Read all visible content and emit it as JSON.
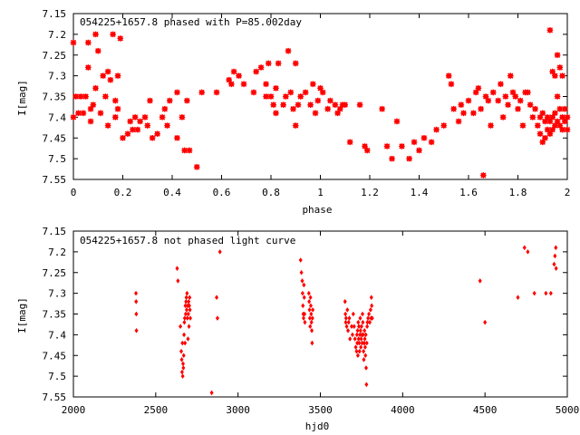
{
  "chart_data": [
    {
      "type": "scatter",
      "title": "054225+1657.8 phased with P=85.002day",
      "xlabel": "phase",
      "ylabel": "I[mag]",
      "xlim": [
        0,
        2
      ],
      "ylim": [
        7.55,
        7.15
      ],
      "y_inverted": true,
      "grid": false,
      "x_ticks": [
        "0",
        "0.2",
        "0.4",
        "0.6",
        "0.8",
        "1",
        "1.2",
        "1.4",
        "1.6",
        "1.8",
        "2"
      ],
      "x_tick_values": [
        0,
        0.2,
        0.4,
        0.6,
        0.8,
        1.0,
        1.2,
        1.4,
        1.6,
        1.8,
        2.0
      ],
      "y_ticks": [
        "7.15",
        "7.2",
        "7.25",
        "7.3",
        "7.35",
        "7.4",
        "7.45",
        "7.5",
        "7.55"
      ],
      "y_tick_values": [
        7.15,
        7.2,
        7.25,
        7.3,
        7.35,
        7.4,
        7.45,
        7.5,
        7.55
      ],
      "marker_color": "#ff0000",
      "marker": "filled-square-star",
      "points": [
        [
          0.0,
          7.22
        ],
        [
          0.0,
          7.4
        ],
        [
          0.01,
          7.35
        ],
        [
          0.02,
          7.39
        ],
        [
          0.03,
          7.35
        ],
        [
          0.04,
          7.39
        ],
        [
          0.05,
          7.35
        ],
        [
          0.06,
          7.22
        ],
        [
          0.06,
          7.28
        ],
        [
          0.07,
          7.38
        ],
        [
          0.07,
          7.41
        ],
        [
          0.08,
          7.37
        ],
        [
          0.09,
          7.2
        ],
        [
          0.09,
          7.33
        ],
        [
          0.1,
          7.24
        ],
        [
          0.11,
          7.39
        ],
        [
          0.12,
          7.3
        ],
        [
          0.13,
          7.35
        ],
        [
          0.14,
          7.29
        ],
        [
          0.14,
          7.42
        ],
        [
          0.15,
          7.31
        ],
        [
          0.16,
          7.2
        ],
        [
          0.17,
          7.36
        ],
        [
          0.17,
          7.4
        ],
        [
          0.18,
          7.3
        ],
        [
          0.18,
          7.38
        ],
        [
          0.19,
          7.21
        ],
        [
          0.2,
          7.45
        ],
        [
          0.22,
          7.44
        ],
        [
          0.23,
          7.41
        ],
        [
          0.24,
          7.43
        ],
        [
          0.25,
          7.4
        ],
        [
          0.26,
          7.43
        ],
        [
          0.27,
          7.41
        ],
        [
          0.29,
          7.4
        ],
        [
          0.3,
          7.42
        ],
        [
          0.31,
          7.36
        ],
        [
          0.32,
          7.45
        ],
        [
          0.34,
          7.44
        ],
        [
          0.36,
          7.4
        ],
        [
          0.37,
          7.38
        ],
        [
          0.38,
          7.42
        ],
        [
          0.39,
          7.36
        ],
        [
          0.42,
          7.34
        ],
        [
          0.42,
          7.45
        ],
        [
          0.44,
          7.4
        ],
        [
          0.45,
          7.48
        ],
        [
          0.46,
          7.36
        ],
        [
          0.47,
          7.48
        ],
        [
          0.5,
          7.52
        ],
        [
          0.52,
          7.34
        ],
        [
          0.58,
          7.34
        ],
        [
          0.63,
          7.31
        ],
        [
          0.64,
          7.32
        ],
        [
          0.65,
          7.29
        ],
        [
          0.67,
          7.3
        ],
        [
          0.69,
          7.32
        ],
        [
          0.73,
          7.34
        ],
        [
          0.74,
          7.29
        ],
        [
          0.76,
          7.28
        ],
        [
          0.78,
          7.35
        ],
        [
          0.78,
          7.32
        ],
        [
          0.79,
          7.27
        ],
        [
          0.8,
          7.35
        ],
        [
          0.81,
          7.37
        ],
        [
          0.82,
          7.33
        ],
        [
          0.82,
          7.39
        ],
        [
          0.83,
          7.27
        ],
        [
          0.85,
          7.37
        ],
        [
          0.86,
          7.35
        ],
        [
          0.87,
          7.24
        ],
        [
          0.88,
          7.34
        ],
        [
          0.89,
          7.38
        ],
        [
          0.9,
          7.27
        ],
        [
          0.9,
          7.42
        ],
        [
          0.91,
          7.37
        ],
        [
          0.92,
          7.35
        ],
        [
          0.94,
          7.34
        ],
        [
          0.96,
          7.37
        ],
        [
          0.97,
          7.32
        ],
        [
          0.98,
          7.39
        ],
        [
          0.99,
          7.36
        ],
        [
          1.0,
          7.33
        ],
        [
          1.01,
          7.34
        ],
        [
          1.03,
          7.38
        ],
        [
          1.04,
          7.36
        ],
        [
          1.06,
          7.37
        ],
        [
          1.07,
          7.39
        ],
        [
          1.08,
          7.38
        ],
        [
          1.09,
          7.37
        ],
        [
          1.1,
          7.37
        ],
        [
          1.12,
          7.46
        ],
        [
          1.16,
          7.37
        ],
        [
          1.18,
          7.47
        ],
        [
          1.19,
          7.48
        ],
        [
          1.25,
          7.38
        ],
        [
          1.27,
          7.47
        ],
        [
          1.29,
          7.5
        ],
        [
          1.31,
          7.41
        ],
        [
          1.33,
          7.47
        ],
        [
          1.36,
          7.5
        ],
        [
          1.38,
          7.46
        ],
        [
          1.4,
          7.48
        ],
        [
          1.42,
          7.45
        ],
        [
          1.45,
          7.46
        ],
        [
          1.47,
          7.43
        ],
        [
          1.5,
          7.42
        ],
        [
          1.52,
          7.3
        ],
        [
          1.53,
          7.32
        ],
        [
          1.54,
          7.38
        ],
        [
          1.56,
          7.41
        ],
        [
          1.57,
          7.37
        ],
        [
          1.58,
          7.39
        ],
        [
          1.6,
          7.36
        ],
        [
          1.62,
          7.39
        ],
        [
          1.63,
          7.34
        ],
        [
          1.64,
          7.33
        ],
        [
          1.65,
          7.38
        ],
        [
          1.66,
          7.54
        ],
        [
          1.67,
          7.35
        ],
        [
          1.68,
          7.36
        ],
        [
          1.69,
          7.42
        ],
        [
          1.7,
          7.34
        ],
        [
          1.72,
          7.36
        ],
        [
          1.73,
          7.32
        ],
        [
          1.74,
          7.4
        ],
        [
          1.75,
          7.35
        ],
        [
          1.76,
          7.37
        ],
        [
          1.77,
          7.3
        ],
        [
          1.78,
          7.34
        ],
        [
          1.79,
          7.35
        ],
        [
          1.8,
          7.38
        ],
        [
          1.81,
          7.36
        ],
        [
          1.82,
          7.42
        ],
        [
          1.83,
          7.34
        ],
        [
          1.84,
          7.34
        ],
        [
          1.85,
          7.37
        ],
        [
          1.86,
          7.4
        ],
        [
          1.87,
          7.38
        ],
        [
          1.88,
          7.42
        ],
        [
          1.89,
          7.4
        ],
        [
          1.89,
          7.44
        ],
        [
          1.9,
          7.39
        ],
        [
          1.9,
          7.46
        ],
        [
          1.91,
          7.41
        ],
        [
          1.91,
          7.45
        ],
        [
          1.92,
          7.4
        ],
        [
          1.92,
          7.43
        ],
        [
          1.93,
          7.41
        ],
        [
          1.93,
          7.44
        ],
        [
          1.93,
          7.19
        ],
        [
          1.94,
          7.29
        ],
        [
          1.94,
          7.4
        ],
        [
          1.94,
          7.43
        ],
        [
          1.95,
          7.3
        ],
        [
          1.95,
          7.39
        ],
        [
          1.95,
          7.42
        ],
        [
          1.96,
          7.25
        ],
        [
          1.96,
          7.35
        ],
        [
          1.96,
          7.41
        ],
        [
          1.97,
          7.28
        ],
        [
          1.97,
          7.38
        ],
        [
          1.97,
          7.42
        ],
        [
          1.98,
          7.3
        ],
        [
          1.98,
          7.4
        ],
        [
          1.98,
          7.43
        ],
        [
          1.99,
          7.38
        ],
        [
          1.99,
          7.41
        ],
        [
          2.0,
          7.4
        ],
        [
          2.0,
          7.43
        ]
      ]
    },
    {
      "type": "scatter",
      "title": "054225+1657.8 not phased light curve",
      "xlabel": "hjd0",
      "ylabel": "I[mag]",
      "xlim": [
        2000,
        5000
      ],
      "ylim": [
        7.55,
        7.15
      ],
      "y_inverted": true,
      "grid": false,
      "x_ticks": [
        "2000",
        "2500",
        "3000",
        "3500",
        "4000",
        "4500",
        "5000"
      ],
      "x_tick_values": [
        2000,
        2500,
        3000,
        3500,
        4000,
        4500,
        5000
      ],
      "y_ticks": [
        "7.15",
        "7.2",
        "7.25",
        "7.3",
        "7.35",
        "7.4",
        "7.45",
        "7.5",
        "7.55"
      ],
      "y_tick_values": [
        7.15,
        7.2,
        7.25,
        7.3,
        7.35,
        7.4,
        7.45,
        7.5,
        7.55
      ],
      "marker_color": "#ff0000",
      "marker": "diamond",
      "points": [
        [
          2380,
          7.3
        ],
        [
          2381,
          7.32
        ],
        [
          2382,
          7.35
        ],
        [
          2383,
          7.39
        ],
        [
          2630,
          7.24
        ],
        [
          2635,
          7.27
        ],
        [
          2650,
          7.38
        ],
        [
          2655,
          7.44
        ],
        [
          2658,
          7.46
        ],
        [
          2660,
          7.49
        ],
        [
          2662,
          7.42
        ],
        [
          2664,
          7.5
        ],
        [
          2666,
          7.47
        ],
        [
          2668,
          7.48
        ],
        [
          2670,
          7.45
        ],
        [
          2672,
          7.4
        ],
        [
          2674,
          7.37
        ],
        [
          2676,
          7.36
        ],
        [
          2678,
          7.42
        ],
        [
          2680,
          7.33
        ],
        [
          2682,
          7.35
        ],
        [
          2684,
          7.32
        ],
        [
          2686,
          7.31
        ],
        [
          2688,
          7.34
        ],
        [
          2690,
          7.3
        ],
        [
          2692,
          7.36
        ],
        [
          2694,
          7.33
        ],
        [
          2696,
          7.41
        ],
        [
          2698,
          7.35
        ],
        [
          2700,
          7.32
        ],
        [
          2702,
          7.38
        ],
        [
          2704,
          7.33
        ],
        [
          2706,
          7.31
        ],
        [
          2708,
          7.34
        ],
        [
          2710,
          7.36
        ],
        [
          2840,
          7.54
        ],
        [
          2870,
          7.31
        ],
        [
          2875,
          7.36
        ],
        [
          2890,
          7.2
        ],
        [
          3380,
          7.22
        ],
        [
          3385,
          7.25
        ],
        [
          3390,
          7.27
        ],
        [
          3392,
          7.3
        ],
        [
          3394,
          7.33
        ],
        [
          3396,
          7.35
        ],
        [
          3398,
          7.36
        ],
        [
          3400,
          7.28
        ],
        [
          3402,
          7.31
        ],
        [
          3404,
          7.35
        ],
        [
          3406,
          7.37
        ],
        [
          3430,
          7.3
        ],
        [
          3432,
          7.32
        ],
        [
          3434,
          7.34
        ],
        [
          3436,
          7.36
        ],
        [
          3438,
          7.38
        ],
        [
          3440,
          7.31
        ],
        [
          3442,
          7.33
        ],
        [
          3444,
          7.35
        ],
        [
          3446,
          7.37
        ],
        [
          3448,
          7.39
        ],
        [
          3450,
          7.42
        ],
        [
          3452,
          7.36
        ],
        [
          3454,
          7.34
        ],
        [
          3650,
          7.32
        ],
        [
          3652,
          7.35
        ],
        [
          3654,
          7.37
        ],
        [
          3656,
          7.36
        ],
        [
          3660,
          7.38
        ],
        [
          3664,
          7.34
        ],
        [
          3668,
          7.39
        ],
        [
          3672,
          7.37
        ],
        [
          3676,
          7.36
        ],
        [
          3680,
          7.41
        ],
        [
          3690,
          7.38
        ],
        [
          3695,
          7.4
        ],
        [
          3700,
          7.35
        ],
        [
          3705,
          7.38
        ],
        [
          3710,
          7.41
        ],
        [
          3715,
          7.43
        ],
        [
          3720,
          7.44
        ],
        [
          3722,
          7.4
        ],
        [
          3724,
          7.42
        ],
        [
          3726,
          7.39
        ],
        [
          3728,
          7.45
        ],
        [
          3730,
          7.37
        ],
        [
          3732,
          7.41
        ],
        [
          3734,
          7.38
        ],
        [
          3736,
          7.42
        ],
        [
          3738,
          7.44
        ],
        [
          3740,
          7.4
        ],
        [
          3742,
          7.36
        ],
        [
          3744,
          7.39
        ],
        [
          3746,
          7.43
        ],
        [
          3748,
          7.41
        ],
        [
          3750,
          7.38
        ],
        [
          3752,
          7.4
        ],
        [
          3754,
          7.42
        ],
        [
          3756,
          7.35
        ],
        [
          3758,
          7.37
        ],
        [
          3760,
          7.4
        ],
        [
          3762,
          7.44
        ],
        [
          3764,
          7.46
        ],
        [
          3766,
          7.42
        ],
        [
          3768,
          7.39
        ],
        [
          3770,
          7.41
        ],
        [
          3772,
          7.43
        ],
        [
          3774,
          7.45
        ],
        [
          3776,
          7.4
        ],
        [
          3778,
          7.48
        ],
        [
          3780,
          7.52
        ],
        [
          3782,
          7.42
        ],
        [
          3784,
          7.38
        ],
        [
          3786,
          7.37
        ],
        [
          3790,
          7.36
        ],
        [
          3795,
          7.35
        ],
        [
          3800,
          7.37
        ],
        [
          3805,
          7.34
        ],
        [
          3808,
          7.36
        ],
        [
          3810,
          7.31
        ],
        [
          3812,
          7.33
        ],
        [
          3815,
          7.36
        ],
        [
          4470,
          7.27
        ],
        [
          4500,
          7.37
        ],
        [
          4700,
          7.31
        ],
        [
          4740,
          7.19
        ],
        [
          4760,
          7.2
        ],
        [
          4800,
          7.3
        ],
        [
          4870,
          7.3
        ],
        [
          4900,
          7.3
        ],
        [
          4920,
          7.23
        ],
        [
          4925,
          7.21
        ],
        [
          4930,
          7.19
        ],
        [
          4932,
          7.24
        ]
      ]
    }
  ]
}
